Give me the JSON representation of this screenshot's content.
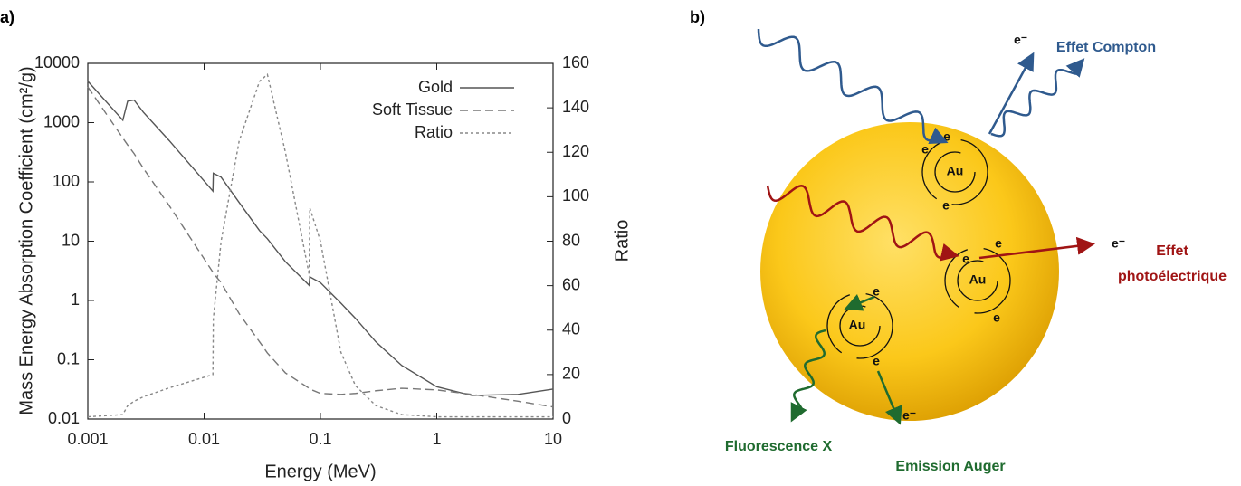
{
  "panel_labels": [
    "a)",
    "b)"
  ],
  "chart_data": {
    "type": "line",
    "x_label": "Energy (MeV)",
    "y_label": "Mass Energy Absorption Coefficient (cm²/g)",
    "y2_label": "Ratio",
    "xscale": "log",
    "yscale": "log",
    "xlim": [
      0.001,
      10
    ],
    "xticks": [
      0.001,
      0.01,
      0.1,
      1,
      10
    ],
    "ylim": [
      0.01,
      10000
    ],
    "yticks": [
      0.01,
      0.1,
      1,
      10,
      100,
      1000,
      10000
    ],
    "y2lim": [
      0,
      160
    ],
    "y2ticks": [
      0,
      20,
      40,
      60,
      80,
      100,
      120,
      140,
      160
    ],
    "legend": "upper right",
    "x": [
      0.001,
      0.002,
      0.0022,
      0.0025,
      0.003,
      0.005,
      0.0119,
      0.012,
      0.014,
      0.02,
      0.03,
      0.035,
      0.05,
      0.08,
      0.081,
      0.1,
      0.15,
      0.2,
      0.3,
      0.5,
      1,
      2,
      5,
      10
    ],
    "series": [
      {
        "name": "Gold",
        "color": "#555555",
        "linestyle": "solid",
        "values": [
          5000,
          1100,
          2300,
          2400,
          1500,
          500,
          70,
          140,
          120,
          45,
          15,
          11,
          4.5,
          1.8,
          2.5,
          2,
          0.9,
          0.5,
          0.2,
          0.08,
          0.035,
          0.025,
          0.026,
          0.032
        ]
      },
      {
        "name": "Soft Tissue",
        "color": "#777777",
        "linestyle": "dashed",
        "values": [
          4000,
          550,
          420,
          300,
          170,
          40,
          3,
          2.9,
          2,
          0.6,
          0.2,
          0.13,
          0.06,
          0.033,
          0.032,
          0.027,
          0.026,
          0.027,
          0.03,
          0.033,
          0.031,
          0.026,
          0.02,
          0.016
        ]
      },
      {
        "name": "Ratio",
        "color": "#888888",
        "linestyle": "dotted",
        "axis": "y2",
        "values": [
          1,
          2,
          6,
          8,
          10,
          14,
          20,
          45,
          80,
          125,
          152,
          155,
          120,
          65,
          95,
          80,
          30,
          15,
          6,
          2,
          1,
          1,
          1,
          1
        ]
      }
    ]
  },
  "diagram": {
    "atoms": [
      {
        "label": "Au",
        "electrons": [
          "e",
          "e",
          "e"
        ]
      },
      {
        "label": "Au",
        "electrons": [
          "e",
          "e",
          "e"
        ]
      },
      {
        "label": "Au",
        "electrons": [
          "e",
          "e"
        ]
      }
    ],
    "electron_labels": [
      "e⁻",
      "e⁻",
      "e⁻"
    ],
    "effects": [
      "Effet Compton",
      "Effet",
      "photoélectrique",
      "Fluorescence X",
      "Emission Auger"
    ]
  }
}
